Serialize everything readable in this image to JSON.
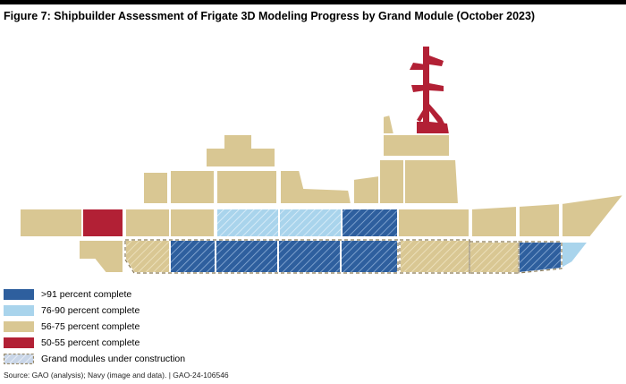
{
  "figure": {
    "title": "Figure 7: Shipbuilder Assessment of Frigate 3D Modeling Progress by Grand Module (October 2023)",
    "source": "Source: GAO (analysis); Navy (image and data).  |  GAO-24-106546"
  },
  "colors": {
    "complete_over_91": "#2e5f9e",
    "complete_76_90": "#a9d4ec",
    "complete_56_75": "#d9c793",
    "complete_50_55": "#b22035",
    "mast": "#b22035",
    "module_border": "#ffffff",
    "construction_outline": "#8a7a55"
  },
  "legend": {
    "items": [
      {
        "key": "over91",
        "label": ">91 percent complete"
      },
      {
        "key": "76to90",
        "label": "76-90 percent complete"
      },
      {
        "key": "56to75",
        "label": "56-75 percent complete"
      },
      {
        "key": "50to55",
        "label": "50-55 percent complete"
      },
      {
        "key": "construction",
        "label": "Grand modules under construction"
      }
    ]
  }
}
